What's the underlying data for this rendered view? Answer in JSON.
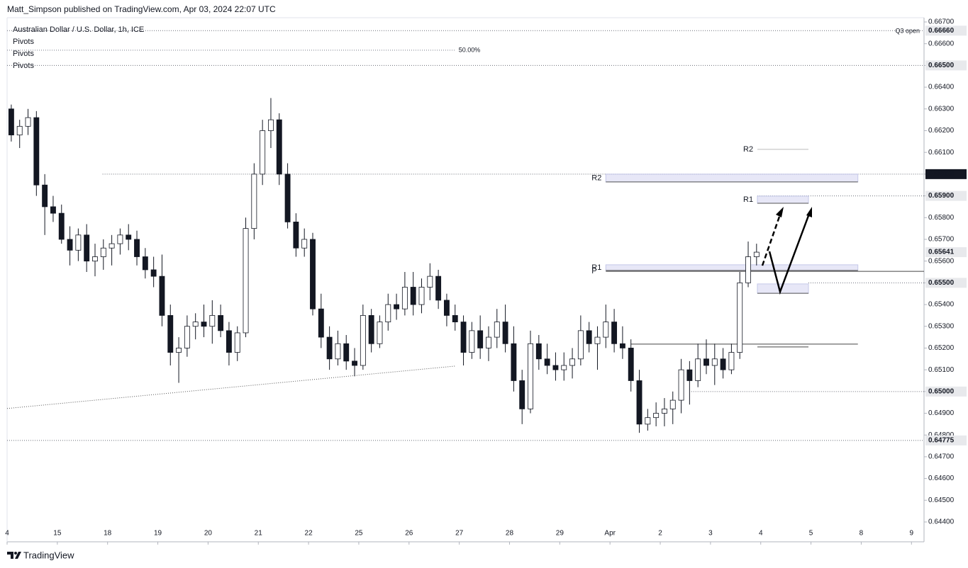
{
  "header": {
    "author_line": "Matt_Simpson published on TradingView.com, Apr 03, 2024 22:07 UTC"
  },
  "chart_data": {
    "type": "candlestick",
    "title": "Australian Dollar / U.S. Dollar, 1h, ICE",
    "indicators": [
      "Pivots",
      "Pivots",
      "Pivots"
    ],
    "color_up": "#ffffff",
    "color_down": "#131722",
    "wick_color": "#131722",
    "ohlc": [
      [
        0.663,
        0.6632,
        0.6615,
        0.6618
      ],
      [
        0.6618,
        0.6625,
        0.6612,
        0.6622
      ],
      [
        0.6622,
        0.663,
        0.6618,
        0.6626
      ],
      [
        0.6626,
        0.6629,
        0.659,
        0.6595
      ],
      [
        0.6595,
        0.66,
        0.6572,
        0.6585
      ],
      [
        0.6585,
        0.659,
        0.6578,
        0.6582
      ],
      [
        0.6582,
        0.6586,
        0.6568,
        0.657
      ],
      [
        0.657,
        0.6576,
        0.6558,
        0.6565
      ],
      [
        0.6565,
        0.6575,
        0.656,
        0.6572
      ],
      [
        0.6572,
        0.6577,
        0.6555,
        0.656
      ],
      [
        0.656,
        0.6568,
        0.6553,
        0.6562
      ],
      [
        0.6562,
        0.657,
        0.6556,
        0.6566
      ],
      [
        0.6566,
        0.6572,
        0.6558,
        0.6568
      ],
      [
        0.6568,
        0.6575,
        0.6563,
        0.6572
      ],
      [
        0.6572,
        0.6577,
        0.6565,
        0.657
      ],
      [
        0.657,
        0.6574,
        0.6558,
        0.6562
      ],
      [
        0.6562,
        0.6566,
        0.6552,
        0.6556
      ],
      [
        0.6556,
        0.6562,
        0.6548,
        0.6553
      ],
      [
        0.6553,
        0.6563,
        0.653,
        0.6535
      ],
      [
        0.6535,
        0.654,
        0.6512,
        0.6518
      ],
      [
        0.6518,
        0.6525,
        0.6504,
        0.652
      ],
      [
        0.652,
        0.6535,
        0.6516,
        0.653
      ],
      [
        0.653,
        0.6536,
        0.6524,
        0.6532
      ],
      [
        0.6532,
        0.654,
        0.6525,
        0.653
      ],
      [
        0.653,
        0.6542,
        0.6522,
        0.6535
      ],
      [
        0.6535,
        0.654,
        0.6525,
        0.6528
      ],
      [
        0.6528,
        0.6532,
        0.6512,
        0.6518
      ],
      [
        0.6518,
        0.653,
        0.6514,
        0.6527
      ],
      [
        0.6527,
        0.658,
        0.6525,
        0.6575
      ],
      [
        0.6575,
        0.6605,
        0.657,
        0.66
      ],
      [
        0.66,
        0.6625,
        0.6595,
        0.662
      ],
      [
        0.662,
        0.6635,
        0.6612,
        0.6625
      ],
      [
        0.6625,
        0.6628,
        0.6595,
        0.66
      ],
      [
        0.66,
        0.6605,
        0.6575,
        0.6578
      ],
      [
        0.6578,
        0.6582,
        0.6562,
        0.6566
      ],
      [
        0.6566,
        0.6575,
        0.6562,
        0.657
      ],
      [
        0.657,
        0.6573,
        0.6535,
        0.6538
      ],
      [
        0.6538,
        0.6545,
        0.652,
        0.6525
      ],
      [
        0.6525,
        0.653,
        0.651,
        0.6515
      ],
      [
        0.6515,
        0.6528,
        0.6512,
        0.6522
      ],
      [
        0.6522,
        0.6526,
        0.651,
        0.6514
      ],
      [
        0.6514,
        0.652,
        0.6507,
        0.6512
      ],
      [
        0.6512,
        0.654,
        0.651,
        0.6535
      ],
      [
        0.6535,
        0.6538,
        0.6518,
        0.6522
      ],
      [
        0.6522,
        0.6535,
        0.652,
        0.6532
      ],
      [
        0.6532,
        0.6545,
        0.6528,
        0.654
      ],
      [
        0.654,
        0.6545,
        0.6533,
        0.6538
      ],
      [
        0.6538,
        0.6555,
        0.6535,
        0.6548
      ],
      [
        0.6548,
        0.6555,
        0.6535,
        0.654
      ],
      [
        0.654,
        0.6552,
        0.6536,
        0.6548
      ],
      [
        0.6548,
        0.6559,
        0.6542,
        0.6553
      ],
      [
        0.6553,
        0.6556,
        0.6538,
        0.6542
      ],
      [
        0.6542,
        0.6545,
        0.653,
        0.6535
      ],
      [
        0.6535,
        0.654,
        0.6528,
        0.6532
      ],
      [
        0.6532,
        0.6535,
        0.6512,
        0.6518
      ],
      [
        0.6518,
        0.6532,
        0.6515,
        0.6528
      ],
      [
        0.6528,
        0.6535,
        0.6515,
        0.652
      ],
      [
        0.652,
        0.653,
        0.6514,
        0.6525
      ],
      [
        0.6525,
        0.6538,
        0.652,
        0.6532
      ],
      [
        0.6532,
        0.654,
        0.6518,
        0.6522
      ],
      [
        0.6522,
        0.653,
        0.65,
        0.6505
      ],
      [
        0.6505,
        0.651,
        0.6485,
        0.6492
      ],
      [
        0.6492,
        0.6528,
        0.649,
        0.6522
      ],
      [
        0.6522,
        0.6526,
        0.651,
        0.6515
      ],
      [
        0.6515,
        0.6522,
        0.6508,
        0.6512
      ],
      [
        0.6512,
        0.6518,
        0.6505,
        0.651
      ],
      [
        0.651,
        0.6518,
        0.6505,
        0.6512
      ],
      [
        0.6512,
        0.652,
        0.6506,
        0.6515
      ],
      [
        0.6515,
        0.6535,
        0.6512,
        0.6528
      ],
      [
        0.6528,
        0.6532,
        0.6518,
        0.6522
      ],
      [
        0.6522,
        0.653,
        0.651,
        0.6525
      ],
      [
        0.6525,
        0.654,
        0.652,
        0.6532
      ],
      [
        0.6532,
        0.6538,
        0.6518,
        0.6522
      ],
      [
        0.6522,
        0.653,
        0.6515,
        0.652
      ],
      [
        0.652,
        0.6524,
        0.65,
        0.6505
      ],
      [
        0.6505,
        0.651,
        0.6481,
        0.6485
      ],
      [
        0.6485,
        0.6492,
        0.6482,
        0.6488
      ],
      [
        0.6488,
        0.6495,
        0.6484,
        0.649
      ],
      [
        0.649,
        0.6497,
        0.6484,
        0.6492
      ],
      [
        0.6492,
        0.65,
        0.6485,
        0.6496
      ],
      [
        0.6496,
        0.6515,
        0.649,
        0.651
      ],
      [
        0.651,
        0.6514,
        0.6494,
        0.6505
      ],
      [
        0.6505,
        0.6522,
        0.6502,
        0.6515
      ],
      [
        0.6515,
        0.6524,
        0.6508,
        0.6512
      ],
      [
        0.6512,
        0.6522,
        0.6503,
        0.6515
      ],
      [
        0.6515,
        0.652,
        0.6506,
        0.651
      ],
      [
        0.651,
        0.6522,
        0.6508,
        0.6518
      ],
      [
        0.6518,
        0.6555,
        0.6515,
        0.655
      ],
      [
        0.655,
        0.6569,
        0.6548,
        0.6562
      ],
      [
        0.6562,
        0.6568,
        0.6558,
        0.65641
      ]
    ],
    "xlim": [
      0,
      109.5
    ],
    "xticks": [
      {
        "value": 0,
        "label": "4"
      },
      {
        "value": 6,
        "label": "15"
      },
      {
        "value": 12,
        "label": "18"
      },
      {
        "value": 18,
        "label": "19"
      },
      {
        "value": 24,
        "label": "20"
      },
      {
        "value": 30,
        "label": "21"
      },
      {
        "value": 36,
        "label": "22"
      },
      {
        "value": 42,
        "label": "25"
      },
      {
        "value": 48,
        "label": "26"
      },
      {
        "value": 54,
        "label": "27"
      },
      {
        "value": 60,
        "label": "28"
      },
      {
        "value": 66,
        "label": "29"
      },
      {
        "value": 72,
        "label": "Apr"
      },
      {
        "value": 78,
        "label": "2"
      },
      {
        "value": 84,
        "label": "3"
      },
      {
        "value": 90,
        "label": "4"
      },
      {
        "value": 96,
        "label": "5"
      },
      {
        "value": 102,
        "label": "8"
      },
      {
        "value": 108,
        "label": "9"
      }
    ],
    "ylim": [
      0.644,
      0.667
    ],
    "yticks": [
      {
        "value": 0.667,
        "label": "0.66700"
      },
      {
        "value": 0.666,
        "label": "0.66600"
      },
      {
        "value": 0.665,
        "label": "0.66500"
      },
      {
        "value": 0.664,
        "label": "0.66400"
      },
      {
        "value": 0.663,
        "label": "0.66300"
      },
      {
        "value": 0.662,
        "label": "0.66200"
      },
      {
        "value": 0.661,
        "label": "0.66100"
      },
      {
        "value": 0.66,
        "label": "0.66000"
      },
      {
        "value": 0.659,
        "label": "0.65900"
      },
      {
        "value": 0.658,
        "label": "0.65800"
      },
      {
        "value": 0.657,
        "label": "0.65700"
      },
      {
        "value": 0.656,
        "label": "0.65600"
      },
      {
        "value": 0.655,
        "label": "0.65500"
      },
      {
        "value": 0.654,
        "label": "0.65400"
      },
      {
        "value": 0.653,
        "label": "0.65300"
      },
      {
        "value": 0.652,
        "label": "0.65200"
      },
      {
        "value": 0.651,
        "label": "0.65100"
      },
      {
        "value": 0.65,
        "label": "0.65000"
      },
      {
        "value": 0.649,
        "label": "0.64900"
      },
      {
        "value": 0.648,
        "label": "0.64800"
      },
      {
        "value": 0.647,
        "label": "0.64700"
      },
      {
        "value": 0.646,
        "label": "0.64600"
      },
      {
        "value": 0.645,
        "label": "0.64500"
      },
      {
        "value": 0.644,
        "label": "0.64400"
      }
    ],
    "levels": [
      {
        "value": 0.6666,
        "label": "0.66660",
        "x_start": 0,
        "line": "dotted",
        "note": "Q3 open"
      },
      {
        "value": 0.665,
        "label": "0.66500",
        "x_start": 0,
        "line": "dotted"
      },
      {
        "value": 0.66,
        "label": "0.66000",
        "x_start": 11.4,
        "line": "dotted",
        "dark": true
      },
      {
        "value": 0.659,
        "label": "0.65900",
        "x_start": 89.6,
        "line": "dotted"
      },
      {
        "value": 0.65641,
        "label": "0.65641",
        "line": "none"
      },
      {
        "value": 0.655,
        "label": "0.65500",
        "x_start": 95.7,
        "line": "dotted"
      },
      {
        "value": 0.65,
        "label": "0.65000",
        "x_start": 81.7,
        "line": "dotted"
      },
      {
        "value": 0.64775,
        "label": "0.64775",
        "x_start": 0,
        "line": "dotted"
      }
    ],
    "pivot_levels": [
      {
        "label": "R2",
        "top": 0.66,
        "bottom": 0.65964,
        "x": [
          71.5,
          101.6
        ]
      },
      {
        "label": "R1",
        "top": 0.65583,
        "bottom": 0.65557,
        "x": [
          71.5,
          101.6
        ]
      },
      {
        "label": "P",
        "value": 0.65553,
        "x": [
          71.5,
          109.5
        ]
      },
      {
        "label": "R2",
        "value": 0.66114,
        "x": [
          89.6,
          95.7
        ]
      },
      {
        "label": "R1",
        "top": 0.65899,
        "bottom": 0.65866,
        "x": [
          89.6,
          95.7
        ]
      },
      {
        "top": 0.65495,
        "bottom": 0.65452,
        "x": [
          89.6,
          95.7
        ]
      },
      {
        "value": 0.65218,
        "x": [
          74.5,
          101.6
        ]
      },
      {
        "value": 0.65205,
        "x": [
          89.6,
          95.7
        ]
      }
    ],
    "trend_line": {
      "x": [
        0,
        53.5
      ],
      "y": [
        0.64922,
        0.65117
      ]
    },
    "fib_level": {
      "value": 0.6657,
      "label": "50.00%",
      "x": [
        0,
        53.5
      ]
    }
  },
  "footer": {
    "brand": "TradingView"
  }
}
